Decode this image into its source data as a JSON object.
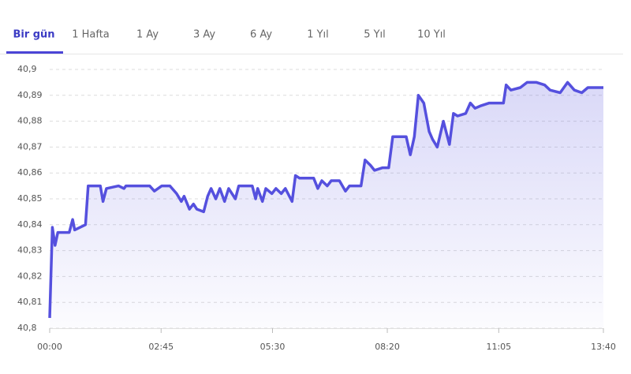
{
  "tabs": [
    "Bir gün",
    "1 Hafta",
    "1 Ay",
    "3 Ay",
    "6 Ay",
    "1 Yıl",
    "5 Yıl",
    "10 Yıl"
  ],
  "chart_data": {
    "type": "line",
    "x": [
      0,
      4,
      8,
      12,
      29,
      34,
      37,
      53,
      57,
      75,
      79,
      84,
      102,
      110,
      113,
      148,
      155,
      166,
      178,
      188,
      195,
      199,
      207,
      213,
      218,
      228,
      234,
      239,
      246,
      252,
      259,
      265,
      275,
      280,
      300,
      305,
      308,
      315,
      320,
      329,
      335,
      343,
      349,
      359,
      364,
      370,
      391,
      397,
      403,
      411,
      417,
      429,
      438,
      444,
      461,
      467,
      475,
      481,
      493,
      502,
      508,
      516,
      528,
      534,
      540,
      546,
      554,
      562,
      567,
      574,
      583,
      592,
      598,
      604,
      616,
      623,
      630,
      639,
      651,
      662,
      672,
      676,
      683,
      697,
      707,
      721,
      733,
      741,
      756,
      767,
      777,
      788,
      797,
      820
    ],
    "series": [
      {
        "color": "#5550de",
        "values": [
          40.804,
          40.839,
          40.832,
          40.837,
          40.837,
          40.842,
          40.838,
          40.84,
          40.855,
          40.855,
          40.849,
          40.854,
          40.855,
          40.854,
          40.855,
          40.855,
          40.853,
          40.855,
          40.855,
          40.852,
          40.849,
          40.851,
          40.846,
          40.848,
          40.846,
          40.845,
          40.851,
          40.854,
          40.85,
          40.854,
          40.849,
          40.854,
          40.85,
          40.855,
          40.855,
          40.85,
          40.854,
          40.849,
          40.854,
          40.852,
          40.854,
          40.852,
          40.854,
          40.849,
          40.859,
          40.858,
          40.858,
          40.854,
          40.857,
          40.855,
          40.857,
          40.857,
          40.853,
          40.855,
          40.855,
          40.865,
          40.863,
          40.861,
          40.862,
          40.862,
          40.874,
          40.874,
          40.874,
          40.867,
          40.874,
          40.89,
          40.887,
          40.876,
          40.873,
          40.87,
          40.88,
          40.871,
          40.883,
          40.882,
          40.883,
          40.887,
          40.885,
          40.886,
          40.887,
          40.887,
          40.887,
          40.894,
          40.892,
          40.893,
          40.895,
          40.895,
          40.894,
          40.892,
          40.891,
          40.895,
          40.892,
          40.891,
          40.893,
          40.893
        ]
      }
    ],
    "xlim": [
      0,
      820
    ],
    "xticks": [
      {
        "value": 0,
        "label": "00:00"
      },
      {
        "value": 165,
        "label": "02:45"
      },
      {
        "value": 330,
        "label": "05:30"
      },
      {
        "value": 500,
        "label": "08:20"
      },
      {
        "value": 665,
        "label": "11:05"
      },
      {
        "value": 820,
        "label": "13:40"
      }
    ],
    "ylim": [
      40.8,
      40.9
    ],
    "yticks": [
      {
        "value": 40.8,
        "label": "40,8"
      },
      {
        "value": 40.81,
        "label": "40,81"
      },
      {
        "value": 40.82,
        "label": "40,82"
      },
      {
        "value": 40.83,
        "label": "40,83"
      },
      {
        "value": 40.84,
        "label": "40,84"
      },
      {
        "value": 40.85,
        "label": "40,85"
      },
      {
        "value": 40.86,
        "label": "40,86"
      },
      {
        "value": 40.87,
        "label": "40,87"
      },
      {
        "value": 40.88,
        "label": "40,88"
      },
      {
        "value": 40.89,
        "label": "40,89"
      },
      {
        "value": 40.9,
        "label": "40,9"
      }
    ],
    "grid": true
  }
}
